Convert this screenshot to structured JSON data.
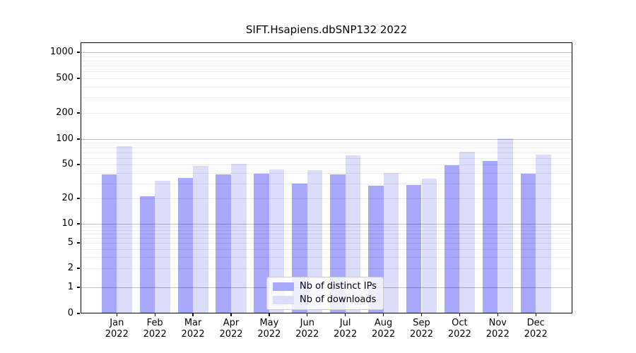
{
  "title": "SIFT.Hsapiens.dbSNP132 2022",
  "chart_data": {
    "type": "bar",
    "categories": [
      "Jan",
      "Feb",
      "Mar",
      "Apr",
      "May",
      "Jun",
      "Jul",
      "Aug",
      "Sep",
      "Oct",
      "Nov",
      "Dec"
    ],
    "year_label": "2022",
    "series": [
      {
        "name": "Nb of distinct IPs",
        "color": "#a9a9fb",
        "values": [
          38,
          21,
          35,
          38,
          39,
          30,
          38,
          28,
          29,
          49,
          55,
          39
        ]
      },
      {
        "name": "Nb of downloads",
        "color": "#dcdcfb",
        "values": [
          82,
          32,
          48,
          51,
          44,
          43,
          65,
          40,
          34,
          71,
          102,
          66
        ]
      }
    ],
    "yticks": [
      0,
      1,
      2,
      5,
      10,
      20,
      50,
      100,
      200,
      500,
      1000
    ],
    "ylim": [
      0,
      1000
    ],
    "scale": "symlog",
    "grid": true,
    "legend_position": "bottom-center"
  },
  "colors": {
    "background": "#ffffff",
    "axis": "#000000",
    "grid_major": "rgba(0,0,0,0.25)",
    "grid_minor": "rgba(0,0,0,0.08)"
  }
}
